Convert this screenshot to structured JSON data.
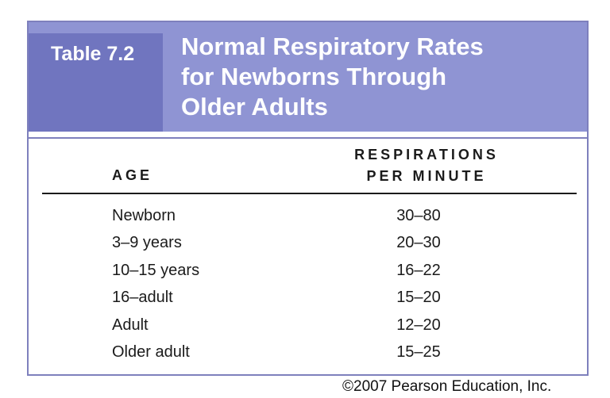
{
  "table": {
    "label": "Table 7.2",
    "title_lines": [
      "Normal Respiratory Rates",
      "for Newborns Through",
      "Older Adults"
    ],
    "columns": {
      "age": "AGE",
      "rate_lines": [
        "RESPIRATIONS",
        "PER MINUTE"
      ]
    },
    "rows": [
      {
        "age": "Newborn",
        "rate": "30–80"
      },
      {
        "age": "3–9 years",
        "rate": "20–30"
      },
      {
        "age": "10–15 years",
        "rate": "16–22"
      },
      {
        "age": "16–adult",
        "rate": "15–20"
      },
      {
        "age": "Adult",
        "rate": "12–20"
      },
      {
        "age": "Older adult",
        "rate": "15–25"
      }
    ]
  },
  "copyright": "©2007 Pearson Education, Inc.",
  "colors": {
    "header_band": "#8f94d3",
    "label_box": "#7075bf",
    "frame_border": "#7e80bd"
  }
}
